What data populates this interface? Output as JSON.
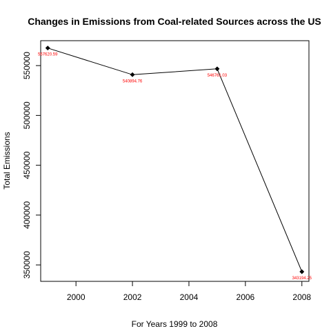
{
  "chart_data": {
    "type": "line",
    "title": "Changes in Emissions from Coal-related Sources across the US",
    "xlabel": "For Years 1999 to 2008",
    "ylabel": "Total Emissions",
    "xlim": [
      1998.75,
      2008.25
    ],
    "ylim": [
      333500,
      575000
    ],
    "x": [
      1999,
      2002,
      2005,
      2008
    ],
    "y": [
      567620.59,
      540894.76,
      546761.03,
      343194.25
    ],
    "point_labels": [
      "567620.59",
      "540894.76",
      "546761.03",
      "343194.25"
    ],
    "x_ticks": [
      2000,
      2002,
      2004,
      2006,
      2008
    ],
    "y_ticks": [
      350000,
      400000,
      450000,
      500000,
      550000
    ],
    "grid": false,
    "line_color": "#000000",
    "point_color": "#000000",
    "label_color": "#ff0000"
  }
}
